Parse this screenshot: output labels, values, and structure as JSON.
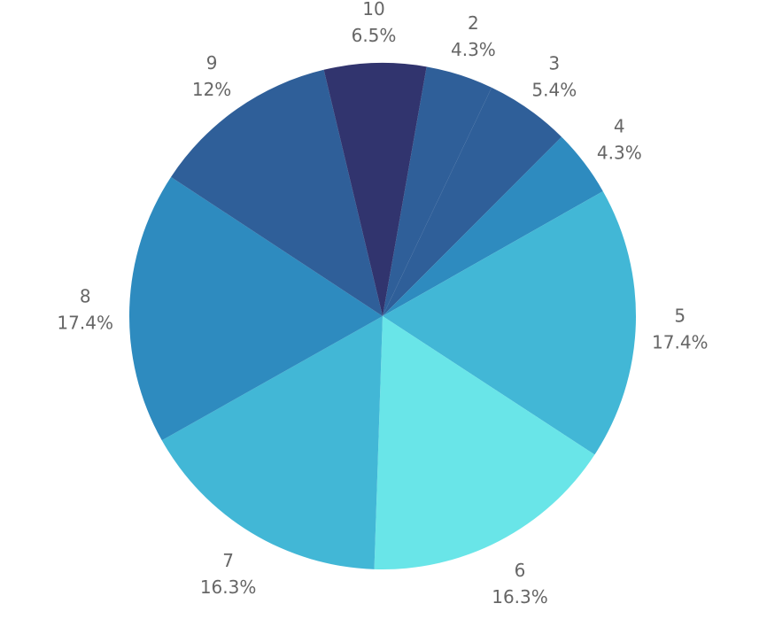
{
  "chart_data": {
    "type": "pie",
    "title": "",
    "start_angle_deg": 10,
    "direction": "clockwise",
    "slices": [
      {
        "label": "2",
        "value": 4.3,
        "percent_label": "4.3%",
        "color": "#2f5f99"
      },
      {
        "label": "3",
        "value": 5.4,
        "percent_label": "5.4%",
        "color": "#2f5f99"
      },
      {
        "label": "4",
        "value": 4.3,
        "percent_label": "4.3%",
        "color": "#2e8bbf"
      },
      {
        "label": "5",
        "value": 17.4,
        "percent_label": "17.4%",
        "color": "#42b7d6"
      },
      {
        "label": "6",
        "value": 16.3,
        "percent_label": "16.3%",
        "color": "#69e5e8"
      },
      {
        "label": "7",
        "value": 16.3,
        "percent_label": "16.3%",
        "color": "#42b7d6"
      },
      {
        "label": "8",
        "value": 17.4,
        "percent_label": "17.4%",
        "color": "#2e8bbf"
      },
      {
        "label": "9",
        "value": 12,
        "percent_label": "12%",
        "color": "#2f5f99"
      },
      {
        "label": "10",
        "value": 6.5,
        "percent_label": "6.5%",
        "color": "#31346e"
      }
    ]
  }
}
